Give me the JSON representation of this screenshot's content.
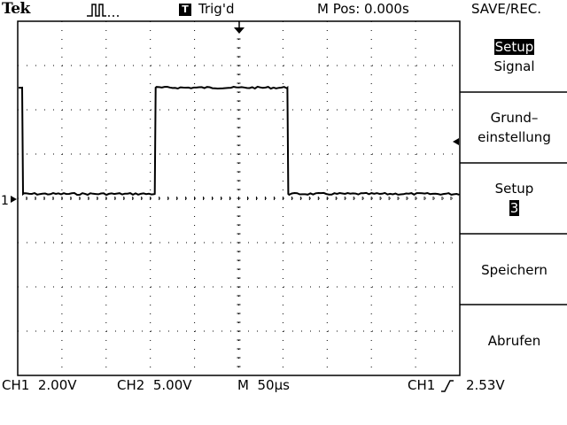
{
  "header": {
    "brand": "Tek",
    "trigger_badge": "T",
    "trigger_status": "Trig'd",
    "main_position": "M Pos: 0.000s",
    "menu_title": "SAVE/REC."
  },
  "side_menu": {
    "items": [
      {
        "line1": "Setup",
        "line2": "Signal",
        "selected": "Setup"
      },
      {
        "line1": "Grund–",
        "line2": "einstellung"
      },
      {
        "line1": "Setup",
        "line2": "3"
      },
      {
        "line1": "Speichern"
      },
      {
        "line1": "Abrufen"
      }
    ]
  },
  "channel_marker": "1",
  "status_bar": {
    "ch1": "CH1  2.00V",
    "ch2": "CH2  5.00V",
    "timebase": "M  50µs",
    "trigger_source": "CH1",
    "trigger_level": "2.53V"
  },
  "waveform": {
    "type": "square",
    "high_level_div": 2.5,
    "low_level_div": 0.1,
    "transitions_div": [
      -4.9,
      -1.9,
      1.1
    ]
  }
}
